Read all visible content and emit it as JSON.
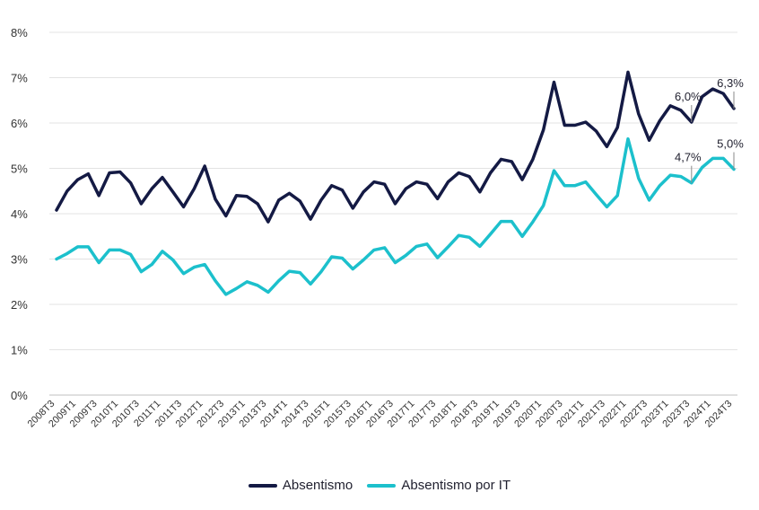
{
  "chart_data": {
    "type": "line",
    "title": "",
    "xlabel": "",
    "ylabel": "",
    "ylim": [
      0,
      8
    ],
    "y_ticks": [
      "0%",
      "1%",
      "2%",
      "3%",
      "4%",
      "5%",
      "6%",
      "7%",
      "8%"
    ],
    "grid": "horizontal",
    "legend_position": "bottom",
    "categories": [
      "2008T3",
      "2008T4",
      "2009T1",
      "2009T2",
      "2009T3",
      "2009T4",
      "2010T1",
      "2010T2",
      "2010T3",
      "2010T4",
      "2011T1",
      "2011T2",
      "2011T3",
      "2011T4",
      "2012T1",
      "2012T2",
      "2012T3",
      "2012T4",
      "2013T1",
      "2013T2",
      "2013T3",
      "2013T4",
      "2014T1",
      "2014T2",
      "2014T3",
      "2014T4",
      "2015T1",
      "2015T2",
      "2015T3",
      "2015T4",
      "2016T1",
      "2016T2",
      "2016T3",
      "2016T4",
      "2017T1",
      "2017T2",
      "2017T3",
      "2017T4",
      "2018T1",
      "2018T2",
      "2018T3",
      "2018T4",
      "2019T1",
      "2019T2",
      "2019T3",
      "2019T4",
      "2020T1",
      "2020T2",
      "2020T3",
      "2020T4",
      "2021T1",
      "2021T2",
      "2021T3",
      "2021T4",
      "2022T1",
      "2022T2",
      "2022T3",
      "2022T4",
      "2023T1",
      "2023T2",
      "2023T3",
      "2023T4",
      "2024T1",
      "2024T2",
      "2024T3"
    ],
    "tick_labels": [
      "2008T3",
      "2009T1",
      "2009T3",
      "2010T1",
      "2010T3",
      "2011T1",
      "2011T3",
      "2012T1",
      "2012T3",
      "2013T1",
      "2013T3",
      "2014T1",
      "2014T3",
      "2015T1",
      "2015T3",
      "2016T1",
      "2016T3",
      "2017T1",
      "2017T3",
      "2018T1",
      "2018T3",
      "2019T1",
      "2019T3",
      "2020T1",
      "2020T3",
      "2021T1",
      "2021T3",
      "2022T1",
      "2022T3",
      "2023T1",
      "2023T3",
      "2024T1",
      "2024T3"
    ],
    "series": [
      {
        "name": "Absentismo",
        "color": "#141a44",
        "values": [
          4.08,
          4.5,
          4.75,
          4.88,
          4.4,
          4.9,
          4.92,
          4.68,
          4.22,
          4.55,
          4.8,
          4.48,
          4.15,
          4.55,
          5.05,
          4.32,
          3.95,
          4.4,
          4.38,
          4.22,
          3.82,
          4.3,
          4.45,
          4.28,
          3.88,
          4.3,
          4.62,
          4.52,
          4.12,
          4.48,
          4.7,
          4.65,
          4.22,
          4.55,
          4.7,
          4.65,
          4.33,
          4.7,
          4.9,
          4.82,
          4.48,
          4.9,
          5.2,
          5.15,
          4.75,
          5.2,
          5.85,
          6.9,
          5.95,
          5.95,
          6.02,
          5.82,
          5.48,
          5.9,
          7.12,
          6.2,
          5.62,
          6.05,
          6.38,
          6.28,
          6.02,
          6.58,
          6.75,
          6.65,
          6.32
        ]
      },
      {
        "name": "Absentismo por IT",
        "color": "#1cc0cc",
        "values": [
          3.0,
          3.12,
          3.27,
          3.27,
          2.92,
          3.2,
          3.2,
          3.1,
          2.72,
          2.88,
          3.17,
          2.98,
          2.68,
          2.82,
          2.88,
          2.52,
          2.22,
          2.35,
          2.5,
          2.42,
          2.27,
          2.52,
          2.73,
          2.7,
          2.45,
          2.72,
          3.05,
          3.02,
          2.78,
          2.98,
          3.2,
          3.25,
          2.92,
          3.08,
          3.28,
          3.33,
          3.03,
          3.27,
          3.52,
          3.48,
          3.28,
          3.55,
          3.83,
          3.83,
          3.5,
          3.82,
          4.18,
          4.95,
          4.62,
          4.62,
          4.7,
          4.42,
          4.15,
          4.4,
          5.65,
          4.78,
          4.3,
          4.62,
          4.85,
          4.82,
          4.68,
          5.02,
          5.22,
          5.22,
          4.98
        ]
      }
    ],
    "annotations": [
      {
        "series": "Absentismo",
        "category": "2023T3",
        "label": "6,0%"
      },
      {
        "series": "Absentismo",
        "category": "2024T3",
        "label": "6,3%"
      },
      {
        "series": "Absentismo por IT",
        "category": "2023T3",
        "label": "4,7%"
      },
      {
        "series": "Absentismo por IT",
        "category": "2024T3",
        "label": "5,0%"
      }
    ]
  },
  "legend": {
    "items": [
      {
        "label": "Absentismo",
        "color": "#141a44"
      },
      {
        "label": "Absentismo por IT",
        "color": "#1cc0cc"
      }
    ]
  }
}
